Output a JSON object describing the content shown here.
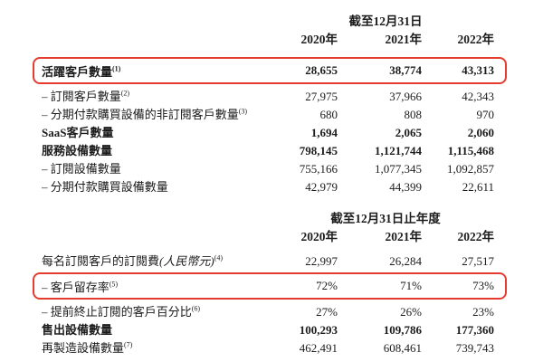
{
  "colors": {
    "background": "#ffffff",
    "text": "#1c1c1c",
    "highlight_border": "#e43d30"
  },
  "table1": {
    "period_header": "截至12月31日",
    "years": [
      "2020年",
      "2021年",
      "2022年"
    ],
    "rows": [
      {
        "label": "活躍客戶數量",
        "sup": "(1)",
        "values": [
          "28,655",
          "38,774",
          "43,313"
        ],
        "bold": true,
        "highlighted": true
      },
      {
        "label": "– 訂閱客戶數量",
        "sup": "(2)",
        "values": [
          "27,975",
          "37,966",
          "42,343"
        ],
        "bold": false,
        "highlighted": false
      },
      {
        "label": "– 分期付款購買設備的非訂閱客戶數量",
        "sup": "(3)",
        "values": [
          "680",
          "808",
          "970"
        ],
        "bold": false,
        "highlighted": false
      },
      {
        "label": "SaaS客戶數量",
        "sup": "",
        "values": [
          "1,694",
          "2,065",
          "2,060"
        ],
        "bold": true,
        "highlighted": false
      },
      {
        "label": "服務設備數量",
        "sup": "",
        "values": [
          "798,145",
          "1,121,744",
          "1,115,468"
        ],
        "bold": true,
        "highlighted": false
      },
      {
        "label": "– 訂閱設備數量",
        "sup": "",
        "values": [
          "755,166",
          "1,077,345",
          "1,092,857"
        ],
        "bold": false,
        "highlighted": false
      },
      {
        "label": "– 分期付款購買設備數量",
        "sup": "",
        "values": [
          "42,979",
          "44,399",
          "22,611"
        ],
        "bold": false,
        "highlighted": false
      }
    ]
  },
  "table2": {
    "period_header": "截至12月31日止年度",
    "years": [
      "2020年",
      "2021年",
      "2022年"
    ],
    "rows": [
      {
        "label": "每名訂閱客戶的訂閱費",
        "label_italic": "(人民幣元)",
        "sup": "(4)",
        "values": [
          "22,997",
          "26,284",
          "27,517"
        ],
        "bold": false,
        "highlighted": false
      },
      {
        "label": "– 客戶留存率",
        "sup": "(5)",
        "values": [
          "72%",
          "71%",
          "73%"
        ],
        "bold": false,
        "highlighted": true
      },
      {
        "label": "– 提前終止訂閱的客戶百分比",
        "sup": "(6)",
        "values": [
          "27%",
          "26%",
          "23%"
        ],
        "bold": false,
        "highlighted": false
      },
      {
        "label": "售出設備數量",
        "sup": "",
        "values": [
          "100,293",
          "109,786",
          "177,360"
        ],
        "bold": true,
        "highlighted": false
      },
      {
        "label": "再製造設備數量",
        "sup": "(7)",
        "values": [
          "462,491",
          "608,461",
          "739,743"
        ],
        "bold": false,
        "highlighted": false
      }
    ]
  }
}
